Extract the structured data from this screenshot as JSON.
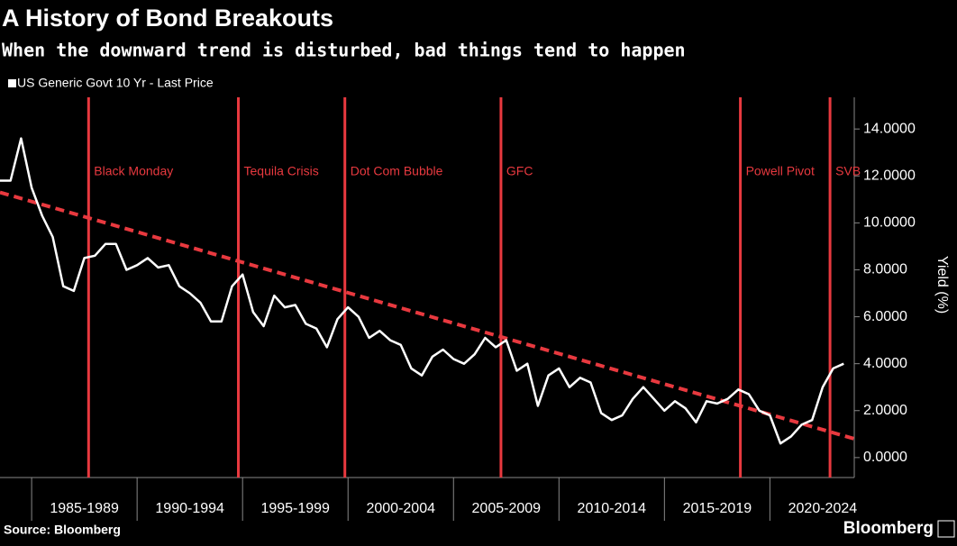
{
  "chart_data": {
    "type": "line",
    "title": "A History of Bond Breakouts",
    "subtitle": "When the downward trend is disturbed, bad things tend to happen",
    "ylabel": "Yield (%)",
    "source": "Source: Bloomberg",
    "brand": "Bloomberg",
    "series": [
      {
        "name": "US Generic Govt 10 Yr - Last Price",
        "color": "#ffffff",
        "values": [
          11.8,
          11.8,
          13.6,
          11.5,
          10.3,
          9.4,
          7.3,
          7.1,
          8.5,
          8.6,
          9.1,
          9.1,
          8.0,
          8.2,
          8.5,
          8.1,
          8.2,
          7.3,
          7.0,
          6.6,
          5.8,
          5.8,
          7.3,
          7.8,
          6.2,
          5.6,
          6.9,
          6.4,
          6.5,
          5.7,
          5.5,
          4.7,
          5.9,
          6.4,
          6.0,
          5.1,
          5.4,
          5.0,
          4.8,
          3.8,
          3.5,
          4.3,
          4.6,
          4.2,
          4.0,
          4.4,
          5.1,
          4.7,
          5.0,
          3.7,
          4.0,
          2.2,
          3.5,
          3.8,
          3.0,
          3.4,
          3.2,
          1.9,
          1.6,
          1.8,
          2.5,
          3.0,
          2.5,
          2.0,
          2.4,
          2.1,
          1.5,
          2.4,
          2.3,
          2.5,
          2.9,
          2.7,
          2.0,
          1.8,
          0.6,
          0.9,
          1.4,
          1.6,
          3.0,
          3.8,
          4.0
        ]
      }
    ],
    "trend": {
      "color": "#e8393f",
      "x": [
        0,
        81
      ],
      "y": [
        11.3,
        0.8
      ]
    },
    "events": [
      {
        "label": "Black Monday",
        "x": 8.4
      },
      {
        "label": "Tequila Crisis",
        "x": 22.6
      },
      {
        "label": "Dot Com Bubble",
        "x": 32.7
      },
      {
        "label": "GFC",
        "x": 47.5
      },
      {
        "label": "Powell Pivot",
        "x": 70.2
      },
      {
        "label": "SVB",
        "x": 78.7
      }
    ],
    "event_color": "#e8393f",
    "xlim": [
      0,
      81
    ],
    "xticks": [
      {
        "value": 3,
        "label": "1985-1989"
      },
      {
        "value": 13,
        "label": "1990-1994"
      },
      {
        "value": 23,
        "label": "1995-1999"
      },
      {
        "value": 33,
        "label": "2000-2004"
      },
      {
        "value": 43,
        "label": "2005-2009"
      },
      {
        "value": 53,
        "label": "2010-2014"
      },
      {
        "value": 63,
        "label": "2015-2019"
      },
      {
        "value": 73,
        "label": "2020-2024"
      }
    ],
    "ylim": [
      -0.85,
      15.35
    ],
    "yticks": [
      {
        "value": 0,
        "label": "0.0000"
      },
      {
        "value": 2,
        "label": "2.0000"
      },
      {
        "value": 4,
        "label": "4.0000"
      },
      {
        "value": 6,
        "label": "6.0000"
      },
      {
        "value": 8,
        "label": "8.0000"
      },
      {
        "value": 10,
        "label": "10.0000"
      },
      {
        "value": 12,
        "label": "12.0000"
      },
      {
        "value": 14,
        "label": "14.0000"
      }
    ]
  }
}
